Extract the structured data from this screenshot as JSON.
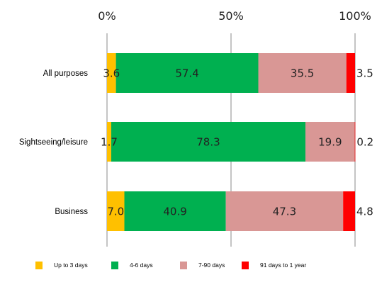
{
  "chart_data": {
    "type": "bar",
    "orientation": "horizontal",
    "stacked": true,
    "categories": [
      "All purposes",
      "Sightseeing/leisure",
      "Business"
    ],
    "series": [
      {
        "name": "Up to 3 days",
        "color": "#FFC000",
        "values": [
          3.6,
          1.7,
          7.0
        ],
        "labels": [
          "3.6",
          "1.7",
          "7.0"
        ]
      },
      {
        "name": "4-6 days",
        "color": "#00B050",
        "values": [
          57.4,
          78.3,
          40.9
        ],
        "labels": [
          "57.4",
          "78.3",
          "40.9"
        ]
      },
      {
        "name": "7-90 days",
        "color": "#D99795",
        "values": [
          35.5,
          19.9,
          47.3
        ],
        "labels": [
          "35.5",
          "19.9",
          "47.3"
        ]
      },
      {
        "name": "91 days to 1 year",
        "color": "#FF0000",
        "values": [
          3.5,
          0.2,
          4.8
        ],
        "labels": [
          "3.5",
          "0.2",
          "4.8"
        ]
      }
    ],
    "xlim": [
      0,
      100
    ],
    "ticks": [
      0,
      50,
      100
    ],
    "tick_labels": [
      "0%",
      "50%",
      "100%"
    ],
    "grid": true,
    "legend": "bottom"
  }
}
